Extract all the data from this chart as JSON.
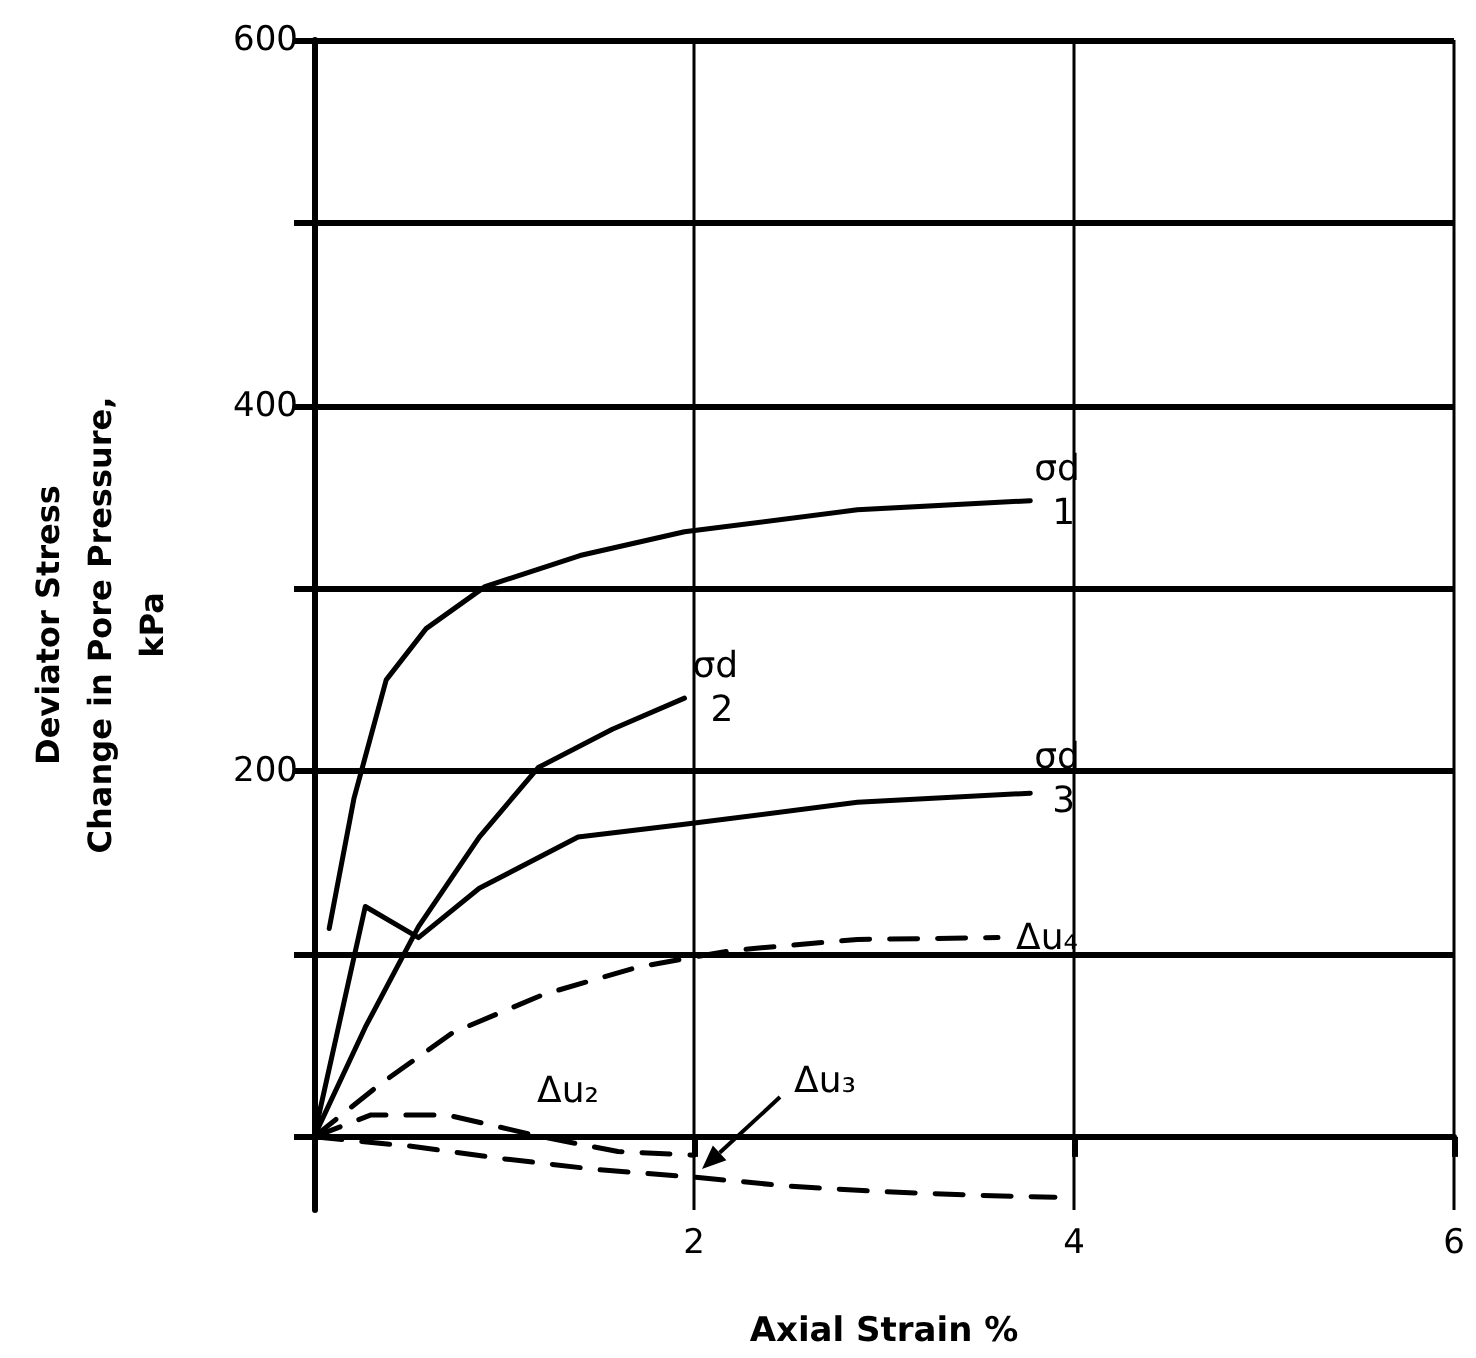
{
  "chart_data": {
    "type": "line",
    "xlabel": "Axial Strain %",
    "ylabel": "Deviator Stress\nChange in Pore Pressure,\nkPa",
    "xlim": [
      0,
      6
    ],
    "xticks": [
      2,
      4,
      6
    ],
    "ylim": [
      -40,
      600
    ],
    "yticks": [
      {
        "value": 0,
        "label": null
      },
      {
        "value": 100,
        "label": null
      },
      200,
      {
        "value": 300,
        "label": null
      },
      400,
      {
        "value": 500,
        "label": null
      },
      600
    ],
    "grid": true,
    "marker": "none",
    "series": [
      {
        "name": "1",
        "color": "#000000",
        "line_style": "solid",
        "x": [
          0.08,
          0.21,
          0.38,
          0.59,
          0.9,
          1.4,
          1.95,
          2.86,
          3.77
        ],
        "values": [
          114,
          185,
          250,
          278,
          301,
          318,
          331,
          343,
          348
        ]
      },
      {
        "name": "2",
        "color": "#000000",
        "line_style": "solid",
        "x": [
          0,
          0.27,
          0.55,
          0.87,
          1.18,
          1.57,
          1.95
        ],
        "values": [
          0,
          60,
          115,
          164,
          202,
          223,
          240
        ]
      },
      {
        "name": "3",
        "color": "#000000",
        "line_style": "solid",
        "x": [
          0,
          0.27,
          0.55,
          0.87,
          1.39,
          1.95,
          2.86,
          3.77
        ],
        "values": [
          0,
          126,
          109,
          136,
          164,
          171,
          183,
          188
        ]
      },
      {
        "name": "Δu₂",
        "color": "#000000",
        "line_style": "dashed",
        "x": [
          0,
          0.3,
          0.7,
          1.2,
          1.6,
          2.0
        ],
        "values": [
          0,
          12,
          12,
          0,
          -8,
          -10
        ]
      },
      {
        "name": "Δu₃",
        "color": "#000000",
        "line_style": "dashed",
        "x": [
          0,
          0.5,
          1.0,
          1.5,
          2.0,
          2.5,
          3.0,
          3.5,
          3.9
        ],
        "values": [
          0,
          -5,
          -12,
          -18,
          -22,
          -27,
          -30,
          -32,
          -33
        ]
      },
      {
        "name": "Δu₄",
        "color": "#000000",
        "line_style": "dashed",
        "x": [
          0,
          0.35,
          0.73,
          1.21,
          1.71,
          2.2,
          2.86,
          3.6
        ],
        "values": [
          0,
          29,
          57,
          78,
          93,
          102,
          108,
          109
        ]
      }
    ],
    "annotations": [
      "σd",
      "σd",
      "σd"
    ]
  }
}
